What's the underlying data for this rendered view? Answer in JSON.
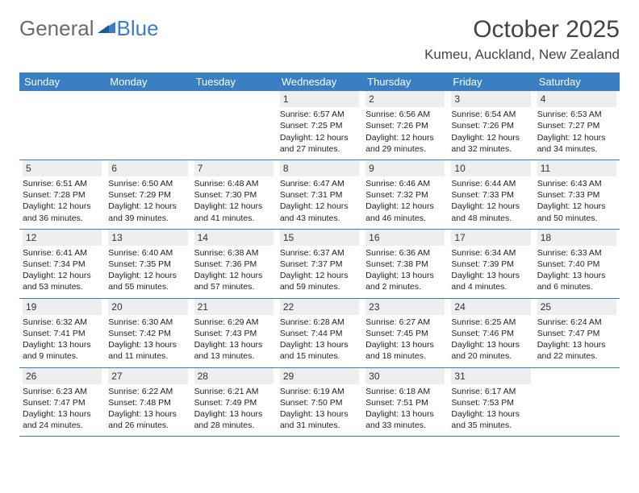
{
  "logo": {
    "general": "General",
    "blue": "Blue"
  },
  "title": "October 2025",
  "location": "Kumeu, Auckland, New Zealand",
  "colors": {
    "header_bar": "#3a7fc4",
    "daynum_bg": "#eceeef",
    "text": "#333333",
    "logo_gray": "#6b6b6b",
    "logo_blue": "#3a7fc4",
    "row_border": "#3a7fc4",
    "background": "#ffffff"
  },
  "typography": {
    "title_fontsize": 30,
    "location_fontsize": 17,
    "weekday_fontsize": 13,
    "daynum_fontsize": 12,
    "body_fontsize": 10.5,
    "logo_fontsize": 26
  },
  "weekdays": [
    "Sunday",
    "Monday",
    "Tuesday",
    "Wednesday",
    "Thursday",
    "Friday",
    "Saturday"
  ],
  "weeks": [
    [
      null,
      null,
      null,
      {
        "n": "1",
        "sr": "Sunrise: 6:57 AM",
        "ss": "Sunset: 7:25 PM",
        "dl": "Daylight: 12 hours and 27 minutes."
      },
      {
        "n": "2",
        "sr": "Sunrise: 6:56 AM",
        "ss": "Sunset: 7:26 PM",
        "dl": "Daylight: 12 hours and 29 minutes."
      },
      {
        "n": "3",
        "sr": "Sunrise: 6:54 AM",
        "ss": "Sunset: 7:26 PM",
        "dl": "Daylight: 12 hours and 32 minutes."
      },
      {
        "n": "4",
        "sr": "Sunrise: 6:53 AM",
        "ss": "Sunset: 7:27 PM",
        "dl": "Daylight: 12 hours and 34 minutes."
      }
    ],
    [
      {
        "n": "5",
        "sr": "Sunrise: 6:51 AM",
        "ss": "Sunset: 7:28 PM",
        "dl": "Daylight: 12 hours and 36 minutes."
      },
      {
        "n": "6",
        "sr": "Sunrise: 6:50 AM",
        "ss": "Sunset: 7:29 PM",
        "dl": "Daylight: 12 hours and 39 minutes."
      },
      {
        "n": "7",
        "sr": "Sunrise: 6:48 AM",
        "ss": "Sunset: 7:30 PM",
        "dl": "Daylight: 12 hours and 41 minutes."
      },
      {
        "n": "8",
        "sr": "Sunrise: 6:47 AM",
        "ss": "Sunset: 7:31 PM",
        "dl": "Daylight: 12 hours and 43 minutes."
      },
      {
        "n": "9",
        "sr": "Sunrise: 6:46 AM",
        "ss": "Sunset: 7:32 PM",
        "dl": "Daylight: 12 hours and 46 minutes."
      },
      {
        "n": "10",
        "sr": "Sunrise: 6:44 AM",
        "ss": "Sunset: 7:33 PM",
        "dl": "Daylight: 12 hours and 48 minutes."
      },
      {
        "n": "11",
        "sr": "Sunrise: 6:43 AM",
        "ss": "Sunset: 7:33 PM",
        "dl": "Daylight: 12 hours and 50 minutes."
      }
    ],
    [
      {
        "n": "12",
        "sr": "Sunrise: 6:41 AM",
        "ss": "Sunset: 7:34 PM",
        "dl": "Daylight: 12 hours and 53 minutes."
      },
      {
        "n": "13",
        "sr": "Sunrise: 6:40 AM",
        "ss": "Sunset: 7:35 PM",
        "dl": "Daylight: 12 hours and 55 minutes."
      },
      {
        "n": "14",
        "sr": "Sunrise: 6:38 AM",
        "ss": "Sunset: 7:36 PM",
        "dl": "Daylight: 12 hours and 57 minutes."
      },
      {
        "n": "15",
        "sr": "Sunrise: 6:37 AM",
        "ss": "Sunset: 7:37 PM",
        "dl": "Daylight: 12 hours and 59 minutes."
      },
      {
        "n": "16",
        "sr": "Sunrise: 6:36 AM",
        "ss": "Sunset: 7:38 PM",
        "dl": "Daylight: 13 hours and 2 minutes."
      },
      {
        "n": "17",
        "sr": "Sunrise: 6:34 AM",
        "ss": "Sunset: 7:39 PM",
        "dl": "Daylight: 13 hours and 4 minutes."
      },
      {
        "n": "18",
        "sr": "Sunrise: 6:33 AM",
        "ss": "Sunset: 7:40 PM",
        "dl": "Daylight: 13 hours and 6 minutes."
      }
    ],
    [
      {
        "n": "19",
        "sr": "Sunrise: 6:32 AM",
        "ss": "Sunset: 7:41 PM",
        "dl": "Daylight: 13 hours and 9 minutes."
      },
      {
        "n": "20",
        "sr": "Sunrise: 6:30 AM",
        "ss": "Sunset: 7:42 PM",
        "dl": "Daylight: 13 hours and 11 minutes."
      },
      {
        "n": "21",
        "sr": "Sunrise: 6:29 AM",
        "ss": "Sunset: 7:43 PM",
        "dl": "Daylight: 13 hours and 13 minutes."
      },
      {
        "n": "22",
        "sr": "Sunrise: 6:28 AM",
        "ss": "Sunset: 7:44 PM",
        "dl": "Daylight: 13 hours and 15 minutes."
      },
      {
        "n": "23",
        "sr": "Sunrise: 6:27 AM",
        "ss": "Sunset: 7:45 PM",
        "dl": "Daylight: 13 hours and 18 minutes."
      },
      {
        "n": "24",
        "sr": "Sunrise: 6:25 AM",
        "ss": "Sunset: 7:46 PM",
        "dl": "Daylight: 13 hours and 20 minutes."
      },
      {
        "n": "25",
        "sr": "Sunrise: 6:24 AM",
        "ss": "Sunset: 7:47 PM",
        "dl": "Daylight: 13 hours and 22 minutes."
      }
    ],
    [
      {
        "n": "26",
        "sr": "Sunrise: 6:23 AM",
        "ss": "Sunset: 7:47 PM",
        "dl": "Daylight: 13 hours and 24 minutes."
      },
      {
        "n": "27",
        "sr": "Sunrise: 6:22 AM",
        "ss": "Sunset: 7:48 PM",
        "dl": "Daylight: 13 hours and 26 minutes."
      },
      {
        "n": "28",
        "sr": "Sunrise: 6:21 AM",
        "ss": "Sunset: 7:49 PM",
        "dl": "Daylight: 13 hours and 28 minutes."
      },
      {
        "n": "29",
        "sr": "Sunrise: 6:19 AM",
        "ss": "Sunset: 7:50 PM",
        "dl": "Daylight: 13 hours and 31 minutes."
      },
      {
        "n": "30",
        "sr": "Sunrise: 6:18 AM",
        "ss": "Sunset: 7:51 PM",
        "dl": "Daylight: 13 hours and 33 minutes."
      },
      {
        "n": "31",
        "sr": "Sunrise: 6:17 AM",
        "ss": "Sunset: 7:53 PM",
        "dl": "Daylight: 13 hours and 35 minutes."
      },
      null
    ]
  ]
}
